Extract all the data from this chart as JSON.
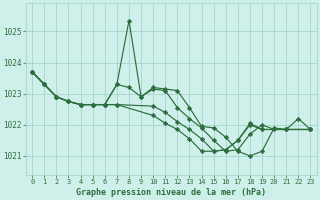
{
  "background_color": "#cff0ea",
  "grid_color": "#aad8d0",
  "line_color": "#2d6e3e",
  "marker_color": "#2d6e3e",
  "title": "Graphe pression niveau de la mer (hPa)",
  "xlim": [
    -0.5,
    23.5
  ],
  "ylim": [
    1020.4,
    1025.9
  ],
  "yticks": [
    1021,
    1022,
    1023,
    1024,
    1025
  ],
  "xticks": [
    0,
    1,
    2,
    3,
    4,
    5,
    6,
    7,
    8,
    9,
    10,
    11,
    12,
    13,
    14,
    15,
    16,
    17,
    18,
    19,
    20,
    21,
    22,
    23
  ],
  "series": [
    {
      "x": [
        0,
        1,
        2,
        3,
        4,
        5,
        6,
        7,
        8,
        9,
        10,
        11,
        12,
        13,
        14,
        15,
        16,
        17,
        18,
        19,
        20,
        21,
        22,
        23
      ],
      "y": [
        1023.7,
        1023.3,
        1022.9,
        1022.75,
        1022.65,
        1022.65,
        1022.65,
        1023.3,
        1025.35,
        1022.9,
        1023.2,
        1023.15,
        1023.1,
        1022.55,
        1021.95,
        1021.9,
        1021.6,
        1021.15,
        1021.0,
        1021.15,
        1021.9,
        1021.85,
        1022.2,
        1021.85
      ]
    },
    {
      "x": [
        0,
        1,
        2,
        3,
        4,
        5,
        6,
        7,
        8,
        9,
        10,
        11,
        12,
        13,
        14,
        15,
        16,
        17,
        18,
        19,
        20,
        21,
        23
      ],
      "y": [
        1023.7,
        1023.3,
        1022.9,
        1022.75,
        1022.65,
        1022.65,
        1022.65,
        1023.3,
        1023.2,
        1022.9,
        1023.15,
        1023.1,
        1022.55,
        1022.2,
        1021.9,
        1021.5,
        1021.15,
        1021.2,
        1021.7,
        1022.0,
        1021.85,
        1021.85,
        1021.85
      ]
    },
    {
      "x": [
        0,
        1,
        2,
        3,
        4,
        5,
        6,
        7,
        10,
        11,
        12,
        13,
        14,
        15,
        16,
        17,
        18,
        19,
        21,
        23
      ],
      "y": [
        1023.7,
        1023.3,
        1022.9,
        1022.75,
        1022.65,
        1022.65,
        1022.65,
        1022.65,
        1022.6,
        1022.4,
        1022.1,
        1021.85,
        1021.55,
        1021.15,
        1021.2,
        1021.5,
        1022.05,
        1021.85,
        1021.85,
        1021.85
      ]
    },
    {
      "x": [
        0,
        1,
        2,
        3,
        4,
        5,
        6,
        7,
        10,
        11,
        12,
        13,
        14,
        15,
        16,
        17,
        18,
        19,
        21,
        23
      ],
      "y": [
        1023.7,
        1023.3,
        1022.9,
        1022.75,
        1022.65,
        1022.65,
        1022.65,
        1022.65,
        1022.3,
        1022.05,
        1021.85,
        1021.55,
        1021.15,
        1021.15,
        1021.2,
        1021.5,
        1022.0,
        1021.85,
        1021.85,
        1021.85
      ]
    }
  ]
}
